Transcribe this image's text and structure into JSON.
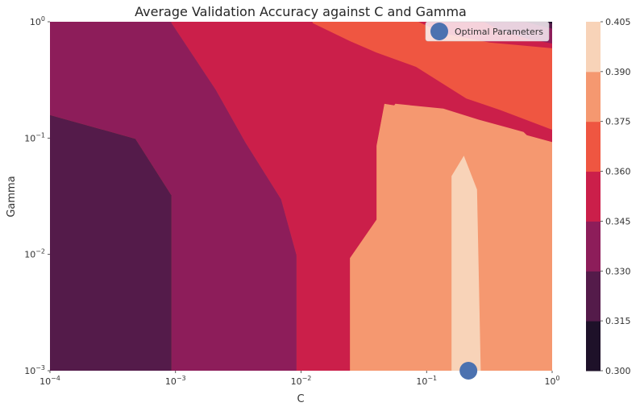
{
  "chart_data": {
    "type": "contour",
    "title": "Average Validation Accuracy against C and Gamma",
    "xlabel": "C",
    "ylabel": "Gamma",
    "x_scale": "log",
    "y_scale": "log",
    "xlim": [
      0.0001,
      1
    ],
    "ylim": [
      0.001,
      1
    ],
    "x_ticks": [
      {
        "base": "10",
        "exp": "−4",
        "value": 0.0001
      },
      {
        "base": "10",
        "exp": "−3",
        "value": 0.001
      },
      {
        "base": "10",
        "exp": "−2",
        "value": 0.01
      },
      {
        "base": "10",
        "exp": "−1",
        "value": 0.1
      },
      {
        "base": "10",
        "exp": "0",
        "value": 1
      }
    ],
    "y_ticks": [
      {
        "base": "10",
        "exp": "−3",
        "value": 0.001
      },
      {
        "base": "10",
        "exp": "−2",
        "value": 0.01
      },
      {
        "base": "10",
        "exp": "−1",
        "value": 0.1
      },
      {
        "base": "10",
        "exp": "0",
        "value": 1
      }
    ],
    "levels": [
      0.3,
      0.315,
      0.33,
      0.345,
      0.36,
      0.375,
      0.39,
      0.405
    ],
    "colorbar_labels": [
      "0.300",
      "0.315",
      "0.330",
      "0.345",
      "0.360",
      "0.375",
      "0.390",
      "0.405"
    ],
    "level_colors": [
      "#1e1129",
      "#541b4a",
      "#8d1d5a",
      "#cb1f4a",
      "#ef5641",
      "#f59870",
      "#f8d3b8"
    ],
    "regions": [
      {
        "level_index": 5,
        "points": [
          [
            0.0001,
            0.001
          ],
          [
            1,
            0.001
          ],
          [
            1,
            1
          ],
          [
            0.0001,
            1
          ]
        ]
      },
      {
        "level_index": 4,
        "points": [
          [
            0.0001,
            0.001
          ],
          [
            0.0245,
            0.001
          ],
          [
            0.0245,
            0.00929
          ],
          [
            0.0399,
            0.0199
          ],
          [
            0.0399,
            0.0858
          ],
          [
            0.0461,
            0.197
          ],
          [
            0.152,
            0.161
          ],
          [
            1,
            0.0924
          ],
          [
            1,
            1
          ],
          [
            0.0001,
            1
          ]
        ]
      },
      {
        "level_index": 3,
        "points": [
          [
            0.0001,
            0.001
          ],
          [
            0.00921,
            0.001
          ],
          [
            0.00921,
            0.00982
          ],
          [
            0.00694,
            0.0297
          ],
          [
            0.00361,
            0.0913
          ],
          [
            0.00209,
            0.261
          ],
          [
            0.000925,
            0.982
          ],
          [
            0.000924,
            1
          ],
          [
            0.0123,
            1
          ],
          [
            0.0124,
            0.971
          ],
          [
            0.0245,
            0.682
          ],
          [
            0.0399,
            0.543
          ],
          [
            0.0824,
            0.409
          ],
          [
            0.207,
            0.219
          ],
          [
            0.387,
            0.174
          ],
          [
            1,
            0.118
          ],
          [
            1,
            0.0924
          ],
          [
            0.152,
            0.161
          ],
          [
            0.0461,
            0.197
          ],
          [
            0.0399,
            0.0858
          ],
          [
            0.0399,
            0.0199
          ],
          [
            0.0245,
            0.00929
          ],
          [
            0.0245,
            0.001
          ]
        ]
      },
      {
        "level_index": 2,
        "points": [
          [
            0.0001,
            0.001
          ],
          [
            0.00093,
            0.001
          ],
          [
            0.00093,
            0.0321
          ],
          [
            0.000479,
            0.0986
          ],
          [
            0.0001,
            0.158
          ],
          [
            0.0001,
            1
          ],
          [
            0.000924,
            1
          ],
          [
            0.000925,
            0.982
          ],
          [
            0.00209,
            0.261
          ],
          [
            0.00361,
            0.0913
          ],
          [
            0.00694,
            0.0297
          ],
          [
            0.00921,
            0.00982
          ],
          [
            0.00921,
            0.001
          ]
        ]
      },
      {
        "level_index": 1,
        "points": [
          [
            0.0001,
            0.001
          ],
          [
            0.00093,
            0.001
          ],
          [
            0.00093,
            0.0321
          ],
          [
            0.000479,
            0.0986
          ],
          [
            0.0001,
            0.158
          ]
        ]
      },
      {
        "level_index": 3,
        "points": [
          [
            0.0861,
            1
          ],
          [
            0.134,
            0.799
          ],
          [
            0.316,
            0.664
          ],
          [
            1,
            0.592
          ],
          [
            1,
            1
          ]
        ]
      },
      {
        "level_index": 2,
        "points": [
          [
            0.286,
            1
          ],
          [
            0.387,
            0.842
          ],
          [
            0.658,
            0.708
          ],
          [
            1,
            0.65
          ],
          [
            1,
            1
          ]
        ]
      },
      {
        "level_index": 1,
        "points": [
          [
            0.608,
            1
          ],
          [
            0.816,
            0.919
          ],
          [
            1,
            0.873
          ],
          [
            1,
            1
          ]
        ]
      },
      {
        "level_index": 0,
        "points": [
          [
            0.873,
            1
          ],
          [
            1,
            0.965
          ],
          [
            1,
            1
          ]
        ]
      },
      {
        "level_index": 5,
        "points": [
          [
            0.0475,
            0.001
          ],
          [
            0.0475,
            0.152
          ],
          [
            0.0564,
            0.197
          ],
          [
            0.136,
            0.179
          ],
          [
            0.26,
            0.144
          ],
          [
            0.592,
            0.113
          ],
          [
            0.825,
            0.0793
          ],
          [
            0.825,
            0.001
          ]
        ]
      },
      {
        "level_index": 6,
        "points": [
          [
            0.158,
            0.001
          ],
          [
            0.158,
            0.0471
          ],
          [
            0.198,
            0.0705
          ],
          [
            0.252,
            0.0361
          ],
          [
            0.27,
            0.001
          ]
        ]
      }
    ],
    "marker": {
      "label": "Optimal Parameters",
      "x": 0.2154,
      "y": 0.001,
      "color": "#4c72b0"
    },
    "legend_position": "top-right",
    "grid": false
  }
}
